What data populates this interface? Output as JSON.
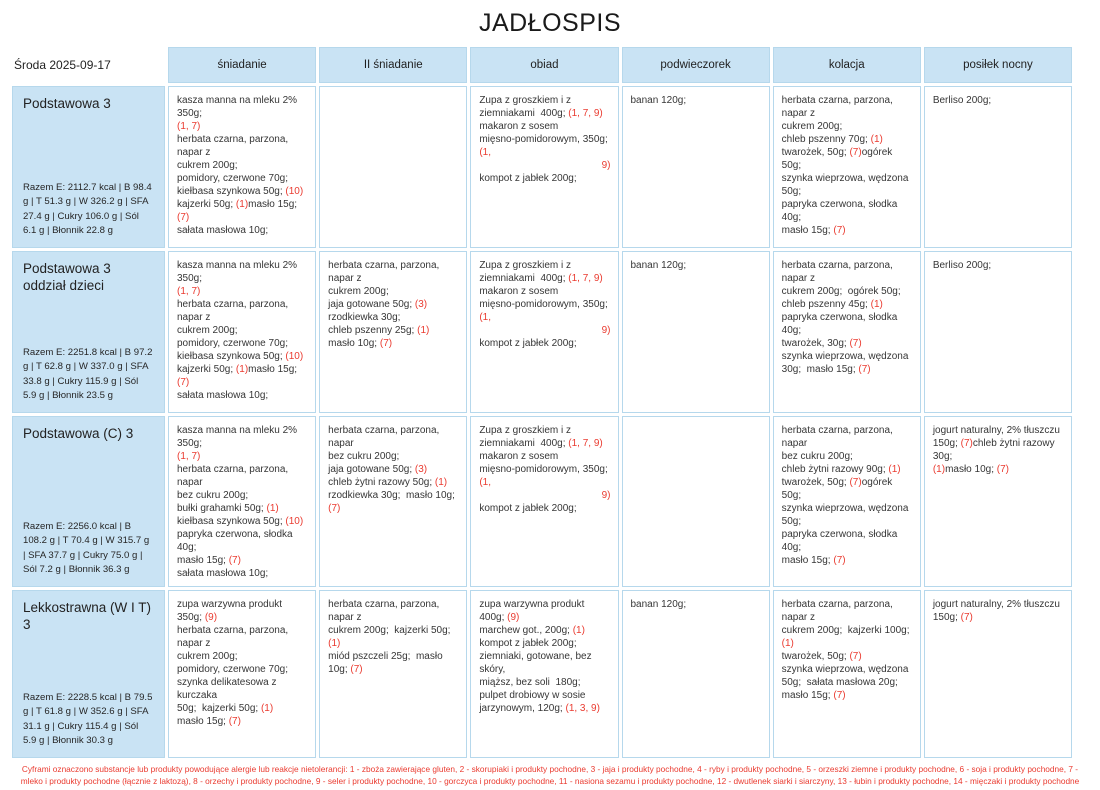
{
  "title": "JADŁOSPIS",
  "date_label": "Środa 2025-09-17",
  "colors": {
    "header_bg": "#c9e3f4",
    "cell_border": "#b6d8ec",
    "allergen_red": "#ea3b30"
  },
  "columns": [
    "śniadanie",
    "II śniadanie",
    "obiad",
    "podwieczorek",
    "kolacja",
    "posiłek nocny"
  ],
  "rows": [
    {
      "diet": "Podstawowa 3",
      "summary": "Razem E: 2112.7 kcal | B 98.4 g | T 51.3 g | W 326.2 g | SFA 27.4 g | Cukry 106.0 g | Sól 6.1 g | Błonnik 22.8 g",
      "meals": [
        [
          "kasza manna na mleku 2% 350g;",
          "[[(1, 7)]]",
          "herbata czarna, parzona, napar z",
          "cukrem 200g;",
          "pomidory, czerwone 70g;",
          "kiełbasa szynkowa 50g; [[(10)]]",
          "kajzerki 50g; [[(1)]]masło 15g; [[(7)]]",
          "sałata masłowa 10g;"
        ],
        [],
        [
          "Zupa z groszkiem i z",
          "ziemniakami  400g; [[(1, 7, 9)]]",
          "makaron z sosem",
          "mięsno-pomidorowym, 350g; [[(1,]]",
          ">>[[9)]]",
          "kompot z jabłek 200g;"
        ],
        [
          "banan 120g;"
        ],
        [
          "herbata czarna, parzona, napar z",
          "cukrem 200g;",
          "chleb pszenny 70g; [[(1)]]",
          "twarożek, 50g; [[(7)]]ogórek 50g;",
          "szynka wieprzowa, wędzona",
          "50g;",
          "papryka czerwona, słodka 40g;",
          "masło 15g; [[(7)]]"
        ],
        [
          "Berliso 200g;"
        ]
      ]
    },
    {
      "diet": "Podstawowa 3 oddział dzieci",
      "summary": "Razem E: 2251.8 kcal | B 97.2 g | T 62.8 g | W 337.0 g | SFA 33.8 g | Cukry 115.9 g | Sól 5.9 g | Błonnik 23.5 g",
      "meals": [
        [
          "kasza manna na mleku 2% 350g;",
          "[[(1, 7)]]",
          "herbata czarna, parzona, napar z",
          "cukrem 200g;",
          "pomidory, czerwone 70g;",
          "kiełbasa szynkowa 50g; [[(10)]]",
          "kajzerki 50g; [[(1)]]masło 15g; [[(7)]]",
          "sałata masłowa 10g;"
        ],
        [
          "herbata czarna, parzona, napar z",
          "cukrem 200g;",
          "jaja gotowane 50g; [[(3)]]",
          "rzodkiewka 30g;",
          "chleb pszenny 25g; [[(1)]]",
          "masło 10g; [[(7)]]"
        ],
        [
          "Zupa z groszkiem i z",
          "ziemniakami  400g; [[(1, 7, 9)]]",
          "makaron z sosem",
          "mięsno-pomidorowym, 350g; [[(1,]]",
          ">>[[9)]]",
          "kompot z jabłek 200g;"
        ],
        [
          "banan 120g;"
        ],
        [
          "herbata czarna, parzona, napar z",
          "cukrem 200g;  ogórek 50g;",
          "chleb pszenny 45g; [[(1)]]",
          "papryka czerwona, słodka 40g;",
          "twarożek, 30g; [[(7)]]",
          "szynka wieprzowa, wędzona",
          "30g;  masło 15g; [[(7)]]"
        ],
        [
          "Berliso 200g;"
        ]
      ]
    },
    {
      "diet": "Podstawowa (C) 3",
      "summary": "Razem E: 2256.0 kcal | B 108.2 g | T 70.4 g | W 315.7 g | SFA 37.7 g | Cukry 75.0 g | Sól 7.2 g | Błonnik 36.3 g",
      "meals": [
        [
          "kasza manna na mleku 2% 350g;",
          "[[(1, 7)]]",
          "herbata czarna, parzona, napar",
          "bez cukru 200g;",
          "bułki grahamki 50g; [[(1)]]",
          "kiełbasa szynkowa 50g; [[(10)]]",
          "papryka czerwona, słodka 40g;",
          "masło 15g; [[(7)]]",
          "sałata masłowa 10g;"
        ],
        [
          "herbata czarna, parzona, napar",
          "bez cukru 200g;",
          "jaja gotowane 50g; [[(3)]]",
          "chleb żytni razowy 50g; [[(1)]]",
          "rzodkiewka 30g;  masło 10g; [[(7)]]"
        ],
        [
          "Zupa z groszkiem i z",
          "ziemniakami  400g; [[(1, 7, 9)]]",
          "makaron z sosem",
          "mięsno-pomidorowym, 350g; [[(1,]]",
          ">>[[9)]]",
          "kompot z jabłek 200g;"
        ],
        [],
        [
          "herbata czarna, parzona, napar",
          "bez cukru 200g;",
          "chleb żytni razowy 90g; [[(1)]]",
          "twarożek, 50g; [[(7)]]ogórek 50g;",
          "szynka wieprzowa, wędzona",
          "50g;",
          "papryka czerwona, słodka 40g;",
          "masło 15g; [[(7)]]"
        ],
        [
          "jogurt naturalny, 2% tłuszczu",
          "150g; [[(7)]]chleb żytni razowy 30g;",
          "[[(1)]]masło 10g; [[(7)]]"
        ]
      ]
    },
    {
      "diet": "Lekkostrawna (W I T) 3",
      "summary": "Razem E: 2228.5 kcal | B 79.5 g | T 61.8 g | W 352.6 g | SFA 31.1 g | Cukry 115.4 g | Sól 5.9 g | Błonnik 30.3 g",
      "meals": [
        [
          "zupa warzywna produkt 350g; [[(9)]]",
          "herbata czarna, parzona, napar z",
          "cukrem 200g;",
          "pomidory, czerwone 70g;",
          "szynka delikatesowa z kurczaka",
          "50g;  kajzerki 50g; [[(1)]]",
          "masło 15g; [[(7)]]"
        ],
        [
          "herbata czarna, parzona, napar z",
          "cukrem 200g;  kajzerki 50g; [[(1)]]",
          "miód pszczeli 25g;  masło 10g; [[(7)]]"
        ],
        [
          "zupa warzywna produkt 400g; [[(9)]]",
          "marchew got., 200g; [[(1)]]",
          "kompot z jabłek 200g;",
          "ziemniaki, gotowane, bez skóry,",
          "miąższ, bez soli  180g;",
          "pulpet drobiowy w sosie",
          "jarzynowym, 120g; [[(1, 3, 9)]]"
        ],
        [
          "banan 120g;"
        ],
        [
          "herbata czarna, parzona, napar z",
          "cukrem 200g;  kajzerki 100g; [[(1)]]",
          "twarożek, 50g; [[(7)]]",
          "szynka wieprzowa, wędzona",
          "50g;  sałata masłowa 20g;",
          "masło 15g; [[(7)]]"
        ],
        [
          "jogurt naturalny, 2% tłuszczu",
          "150g; [[(7)]]"
        ]
      ]
    }
  ],
  "footer": {
    "text": "Cyframi oznaczono substancje lub produkty powodujące alergie lub reakcje nietolerancji: 1 - zboża zawierające gluten, 2 - skorupiaki i produkty pochodne, 3 - jaja i produkty pochodne, 4 - ryby i produkty pochodne, 5 - orzeszki ziemne i produkty pochodne, 6 - soja i produkty pochodne, 7 - mleko i produkty pochodne (łącznie z laktozą), 8 - orzechy i produkty pochodne, 9 - seler i produkty pochodne, 10 - gorczyca i produkty pochodne, 11 - nasiona sezamu i produkty pochodne, 12 - dwutlenek siarki i siarczyny, 13 - łubin i produkty pochodne, 14 - mięczaki i produkty pochodne"
  }
}
